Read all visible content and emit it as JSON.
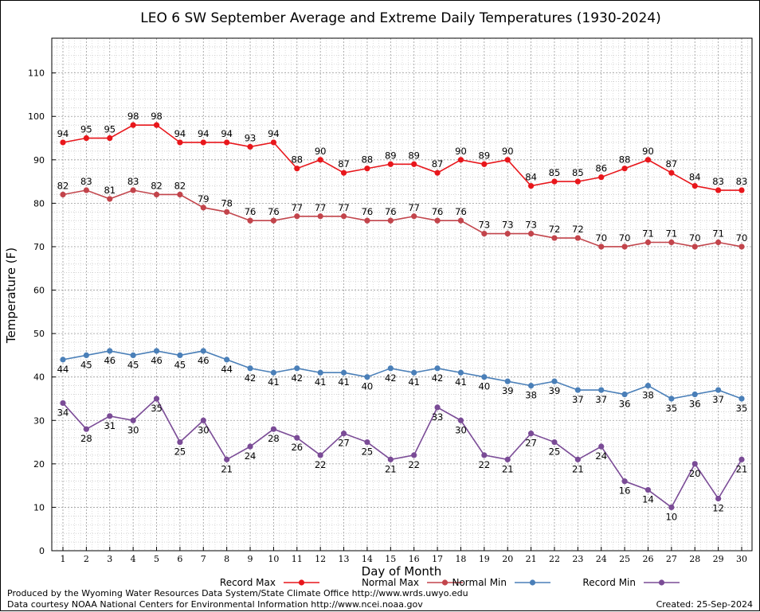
{
  "chart_data": {
    "type": "line",
    "title": "LEO 6 SW September Average and Extreme Daily Temperatures (1930-2024)",
    "xlabel": "Day of Month",
    "ylabel": "Temperature (F)",
    "ylim": [
      0,
      118
    ],
    "yticks": [
      0,
      10,
      20,
      30,
      40,
      50,
      60,
      70,
      80,
      90,
      100,
      110
    ],
    "x": [
      1,
      2,
      3,
      4,
      5,
      6,
      7,
      8,
      9,
      10,
      11,
      12,
      13,
      14,
      15,
      16,
      17,
      18,
      19,
      20,
      21,
      22,
      23,
      24,
      25,
      26,
      27,
      28,
      29,
      30
    ],
    "grid": true,
    "legend_position": "bottom",
    "series": [
      {
        "name": "Record Max",
        "color": "#e8161b",
        "label_pos": "above",
        "values": [
          94,
          95,
          95,
          98,
          98,
          94,
          94,
          94,
          93,
          94,
          88,
          90,
          87,
          88,
          89,
          89,
          87,
          90,
          89,
          90,
          84,
          85,
          85,
          86,
          88,
          90,
          87,
          84,
          83,
          83
        ]
      },
      {
        "name": "Normal Max",
        "color": "#c2444b",
        "label_pos": "above",
        "values": [
          82,
          83,
          81,
          83,
          82,
          82,
          79,
          78,
          76,
          76,
          77,
          77,
          77,
          76,
          76,
          77,
          76,
          76,
          73,
          73,
          73,
          72,
          72,
          70,
          70,
          71,
          71,
          70,
          71,
          70
        ]
      },
      {
        "name": "Normal Min",
        "color": "#4a7fb8",
        "label_pos": "below",
        "values": [
          44,
          45,
          46,
          45,
          46,
          45,
          46,
          44,
          42,
          41,
          42,
          41,
          41,
          40,
          42,
          41,
          42,
          41,
          40,
          39,
          38,
          39,
          37,
          37,
          36,
          38,
          35,
          36,
          37,
          35
        ]
      },
      {
        "name": "Record Min",
        "color": "#7a4b96",
        "label_pos": "below",
        "values": [
          34,
          28,
          31,
          30,
          35,
          25,
          30,
          21,
          24,
          28,
          26,
          22,
          27,
          25,
          21,
          22,
          33,
          30,
          22,
          21,
          27,
          25,
          21,
          24,
          16,
          14,
          10,
          20,
          12,
          21
        ]
      }
    ]
  },
  "footer": {
    "produced_by": "Produced by the Wyoming Water Resources Data System/State Climate Office http://www.wrds.uwyo.edu",
    "courtesy": "Data courtesy NOAA National Centers for Environmental Information http://www.ncei.noaa.gov",
    "created": "Created:  25-Sep-2024"
  }
}
